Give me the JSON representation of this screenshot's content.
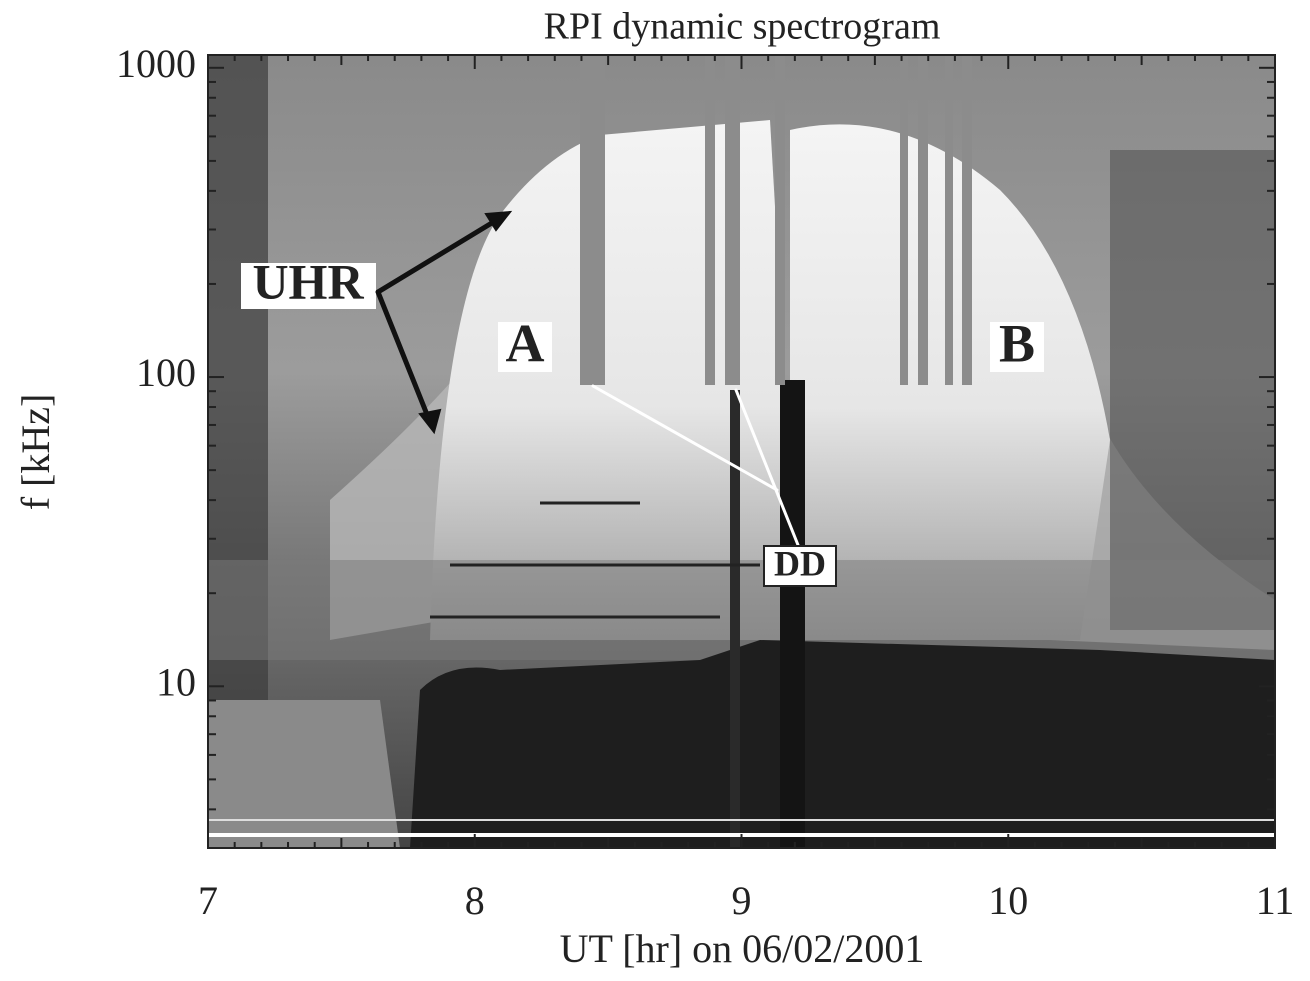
{
  "chart_data": {
    "type": "spectrogram",
    "title": "RPI dynamic spectrogram",
    "x_label": "UT [hr] on 06/02/2001",
    "y_label": "f [kHz]",
    "xlim": [
      7,
      11
    ],
    "xticks": [
      7,
      8,
      9,
      10,
      11
    ],
    "ylim": [
      3,
      1100
    ],
    "yticks": [
      10,
      100,
      1000
    ],
    "y_scale": "log",
    "annotations": [
      "UHR",
      "A",
      "B",
      "DD"
    ]
  }
}
